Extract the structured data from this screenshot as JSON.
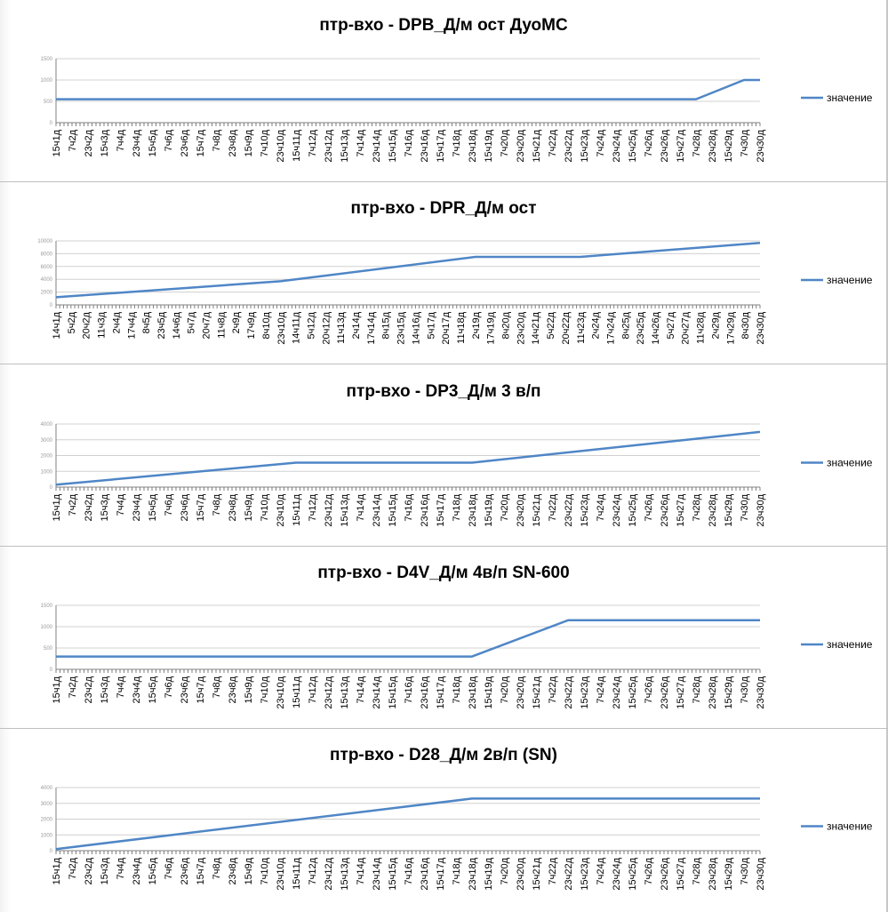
{
  "chart_data": [
    {
      "type": "line",
      "title": "птр-вхо - DPB_Д/м ост ДуоМС",
      "categories": [
        "15ч1д",
        "7ч2д",
        "23ч2д",
        "15ч3д",
        "7ч4д",
        "23ч4д",
        "15ч5д",
        "7ч6д",
        "23ч6д",
        "15ч7д",
        "7ч8д",
        "23ч8д",
        "15ч9д",
        "7ч10д",
        "23ч10д",
        "15ч11д",
        "7ч12д",
        "23ч12д",
        "15ч13д",
        "7ч14д",
        "23ч14д",
        "15ч15д",
        "7ч16д",
        "23ч16д",
        "15ч17д",
        "7ч18д",
        "23ч18д",
        "15ч19д",
        "7ч20д",
        "23ч20д",
        "15ч21д",
        "7ч22д",
        "23ч22д",
        "15ч23д",
        "7ч24д",
        "23ч24д",
        "15ч25д",
        "7ч26д",
        "23ч26д",
        "15ч27д",
        "7ч28д",
        "23ч28д",
        "15ч29д",
        "7ч30д",
        "23ч30д"
      ],
      "series": [
        {
          "name": "значение",
          "points": [
            [
              0,
              550
            ],
            [
              40,
              550
            ],
            [
              43,
              1000
            ],
            [
              44,
              1000
            ]
          ]
        }
      ],
      "ylim": [
        0,
        1500
      ],
      "yticks": [
        "0",
        "500",
        "1000",
        "1500"
      ],
      "legend_position": "right",
      "grid": true
    },
    {
      "type": "line",
      "title": "птр-вхо - DPR_Д/м ост",
      "categories": [
        "14ч1д",
        "5ч2д",
        "20ч2д",
        "11ч3д",
        "2ч4д",
        "17ч4д",
        "8ч5д",
        "23ч5д",
        "14ч6д",
        "5ч7д",
        "20ч7д",
        "11ч8д",
        "2ч9д",
        "17ч9д",
        "8ч10д",
        "23ч10д",
        "14ч11д",
        "5ч12д",
        "20ч12д",
        "11ч13д",
        "2ч14д",
        "17ч14д",
        "8ч15д",
        "23ч15д",
        "14ч16д",
        "5ч17д",
        "20ч17д",
        "11ч18д",
        "2ч19д",
        "17ч19д",
        "8ч20д",
        "23ч20д",
        "14ч21д",
        "5ч22д",
        "20ч22д",
        "11ч23д",
        "2ч24д",
        "17ч24д",
        "8ч25д",
        "23ч25д",
        "14ч26д",
        "5ч27д",
        "20ч27д",
        "11ч28д",
        "2ч29д",
        "17ч29д",
        "8ч30д",
        "23ч30д"
      ],
      "series": [
        {
          "name": "значение",
          "points": [
            [
              0,
              1200
            ],
            [
              15,
              3700
            ],
            [
              28,
              7500
            ],
            [
              35,
              7500
            ],
            [
              47,
              9700
            ]
          ]
        }
      ],
      "ylim": [
        0,
        10000
      ],
      "yticks": [
        "0",
        "2000",
        "4000",
        "6000",
        "8000",
        "10000"
      ],
      "legend_position": "right",
      "grid": true
    },
    {
      "type": "line",
      "title": "птр-вхо - DP3_Д/м 3 в/п",
      "categories": [
        "15ч1д",
        "7ч2д",
        "23ч2д",
        "15ч3д",
        "7ч4д",
        "23ч4д",
        "15ч5д",
        "7ч6д",
        "23ч6д",
        "15ч7д",
        "7ч8д",
        "23ч8д",
        "15ч9д",
        "7ч10д",
        "23ч10д",
        "15ч11д",
        "7ч12д",
        "23ч12д",
        "15ч13д",
        "7ч14д",
        "23ч14д",
        "15ч15д",
        "7ч16д",
        "23ч16д",
        "15ч17д",
        "7ч18д",
        "23ч18д",
        "15ч19д",
        "7ч20д",
        "23ч20д",
        "15ч21д",
        "7ч22д",
        "23ч22д",
        "15ч23д",
        "7ч24д",
        "23ч24д",
        "15ч25д",
        "7ч26д",
        "23ч26д",
        "15ч27д",
        "7ч28д",
        "23ч28д",
        "15ч29д",
        "7ч30д",
        "23ч30д"
      ],
      "series": [
        {
          "name": "значение",
          "points": [
            [
              0,
              150
            ],
            [
              15,
              1550
            ],
            [
              26,
              1550
            ],
            [
              44,
              3500
            ]
          ]
        }
      ],
      "ylim": [
        0,
        4000
      ],
      "yticks": [
        "0",
        "1000",
        "2000",
        "3000",
        "4000"
      ],
      "legend_position": "right",
      "grid": true
    },
    {
      "type": "line",
      "title": "птр-вхо - D4V_Д/м 4в/п SN-600",
      "categories": [
        "15ч1д",
        "7ч2д",
        "23ч2д",
        "15ч3д",
        "7ч4д",
        "23ч4д",
        "15ч5д",
        "7ч6д",
        "23ч6д",
        "15ч7д",
        "7ч8д",
        "23ч8д",
        "15ч9д",
        "7ч10д",
        "23ч10д",
        "15ч11д",
        "7ч12д",
        "23ч12д",
        "15ч13д",
        "7ч14д",
        "23ч14д",
        "15ч15д",
        "7ч16д",
        "23ч16д",
        "15ч17д",
        "7ч18д",
        "23ч18д",
        "15ч19д",
        "7ч20д",
        "23ч20д",
        "15ч21д",
        "7ч22д",
        "23ч22д",
        "15ч23д",
        "7ч24д",
        "23ч24д",
        "15ч25д",
        "7ч26д",
        "23ч26д",
        "15ч27д",
        "7ч28д",
        "23ч28д",
        "15ч29д",
        "7ч30д",
        "23ч30д"
      ],
      "series": [
        {
          "name": "значение",
          "points": [
            [
              0,
              300
            ],
            [
              26,
              300
            ],
            [
              32,
              1150
            ],
            [
              44,
              1150
            ]
          ]
        }
      ],
      "ylim": [
        0,
        1500
      ],
      "yticks": [
        "0",
        "500",
        "1000",
        "1500"
      ],
      "legend_position": "right",
      "grid": true
    },
    {
      "type": "line",
      "title": "птр-вхо - D28_Д/м 2в/п (SN)",
      "categories": [
        "15ч1д",
        "7ч2д",
        "23ч2д",
        "15ч3д",
        "7ч4д",
        "23ч4д",
        "15ч5д",
        "7ч6д",
        "23ч6д",
        "15ч7д",
        "7ч8д",
        "23ч8д",
        "15ч9д",
        "7ч10д",
        "23ч10д",
        "15ч11д",
        "7ч12д",
        "23ч12д",
        "15ч13д",
        "7ч14д",
        "23ч14д",
        "15ч15д",
        "7ч16д",
        "23ч16д",
        "15ч17д",
        "7ч18д",
        "23ч18д",
        "15ч19д",
        "7ч20д",
        "23ч20д",
        "15ч21д",
        "7ч22д",
        "23ч22д",
        "15ч23д",
        "7ч24д",
        "23ч24д",
        "15ч25д",
        "7ч26д",
        "23ч26д",
        "15ч27д",
        "7ч28д",
        "23ч28д",
        "15ч29д",
        "7ч30д",
        "23ч30д"
      ],
      "series": [
        {
          "name": "значение",
          "points": [
            [
              0,
              100
            ],
            [
              26,
              3300
            ],
            [
              44,
              3300
            ]
          ]
        }
      ],
      "ylim": [
        0,
        4000
      ],
      "yticks": [
        "0",
        "1000",
        "2000",
        "3000",
        "4000"
      ],
      "legend_position": "right",
      "grid": true
    }
  ]
}
